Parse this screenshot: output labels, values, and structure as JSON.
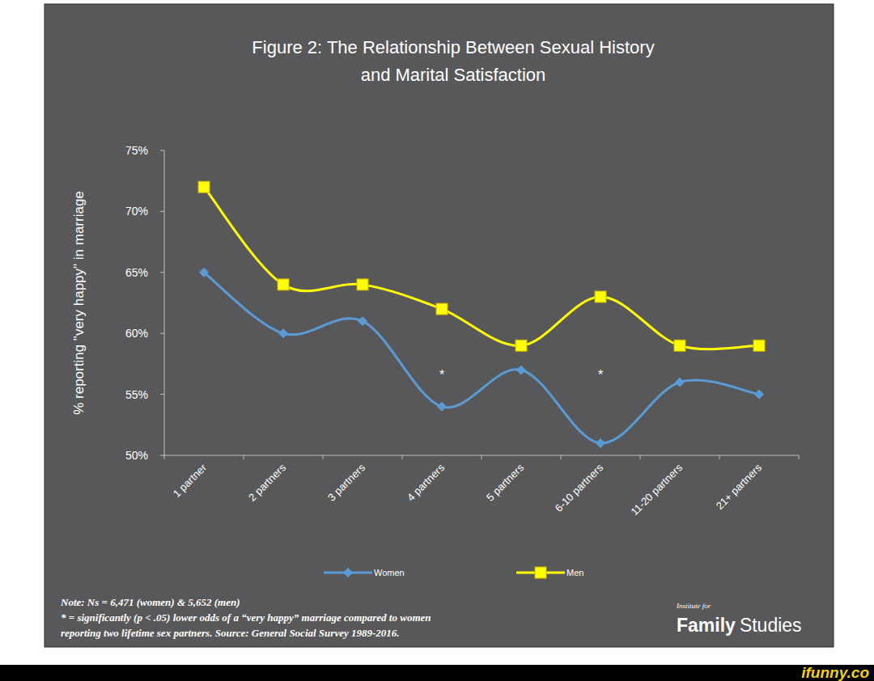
{
  "chart_data": {
    "type": "line",
    "title": [
      "Figure  2: The Relationship Between Sexual History",
      "and Marital Satisfaction"
    ],
    "y_label": "% reporting \"very happy\" in marriage",
    "categories": [
      "1 partner",
      "2 partners",
      "3 partners",
      "4 partners",
      "5 partners",
      "6-10 partners",
      "11-20 partners",
      "21+ partners"
    ],
    "series": [
      {
        "name": "Women",
        "color": "#5b9bd5",
        "marker": "diamond",
        "values": [
          65,
          60,
          61,
          54,
          57,
          51,
          56,
          55
        ]
      },
      {
        "name": "Men",
        "color": "#ffff00",
        "marker": "square",
        "values": [
          72,
          64,
          64,
          62,
          59,
          63,
          59,
          59
        ]
      }
    ],
    "ylim": [
      50,
      75
    ],
    "yticks": [
      {
        "value": 50,
        "label": "50%"
      },
      {
        "value": 55,
        "label": "55%"
      },
      {
        "value": 60,
        "label": "60%"
      },
      {
        "value": 65,
        "label": "65%"
      },
      {
        "value": 70,
        "label": "70%"
      },
      {
        "value": 75,
        "label": "75%"
      }
    ],
    "grid": false,
    "legend": "bottom",
    "annotations": [
      {
        "text": "*",
        "x": "4 partners"
      },
      {
        "text": "*",
        "x": "6-10 partners"
      }
    ],
    "note": [
      "Note: Ns = 6,471 (women) & 5,652 (men)",
      "* = significantly (p < .05) lower odds of a “very happy” marriage compared to women",
      "reporting two lifetime sex partners.  Source: General Social Survey 1989-2016."
    ],
    "source_logo": {
      "small": "Institute for",
      "main": "Family",
      "sub": "Studies"
    }
  },
  "watermark": "ifunny.co"
}
